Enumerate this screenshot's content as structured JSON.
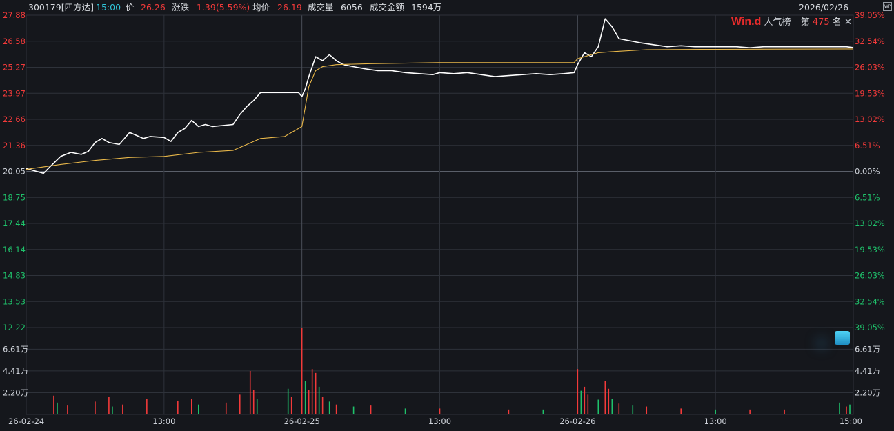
{
  "header": {
    "code_name": "300179[四方达]",
    "time": "15:00",
    "price_label": "价",
    "price": "26.26",
    "change_label": "涨跌",
    "change": "1.39(5.59%)",
    "avg_label": "均价",
    "avg": "26.19",
    "volume_label": "成交量",
    "volume": "6056",
    "amount_label": "成交金额",
    "amount": "1594万",
    "date": "2026/02/26",
    "badge": "WP"
  },
  "brand": {
    "logo": "Win.d",
    "list_name": "人气榜",
    "rank_prefix": "第",
    "rank": "475",
    "rank_suffix": "名",
    "close": "✕"
  },
  "colors": {
    "background": "#15171c",
    "grid": "#2e323a",
    "price_line": "#ffffff",
    "avg_line": "#e9b84a",
    "up": "#f23a3a",
    "down": "#1fc26b",
    "neutral_text": "#cfd3da"
  },
  "chart_data": {
    "type": "line",
    "base_price": 20.05,
    "price_axis": {
      "min": 12.22,
      "max": 27.88,
      "ticks": [
        "27.88",
        "26.58",
        "25.27",
        "23.97",
        "22.66",
        "21.36",
        "20.05",
        "18.75",
        "17.44",
        "16.14",
        "14.83",
        "13.53",
        "12.22"
      ],
      "pct_ticks": [
        "39.05%",
        "32.54%",
        "26.03%",
        "19.53%",
        "13.02%",
        "6.51%",
        "0.00%",
        "6.51%",
        "13.02%",
        "19.53%",
        "26.03%",
        "32.54%",
        "39.05%"
      ]
    },
    "volume_axis": {
      "unit": "万",
      "ticks": [
        "6.61万",
        "4.41万",
        "2.20万"
      ],
      "tick_values": [
        6.61,
        4.41,
        2.2
      ],
      "max": 8.8
    },
    "x_labels": [
      "26-02-24",
      "13:00",
      "26-02-25",
      "13:00",
      "26-02-26",
      "13:00",
      "15:00"
    ],
    "days": [
      "2026-02-24",
      "2026-02-25",
      "2026-02-26"
    ],
    "series": [
      {
        "name": "price",
        "points": [
          [
            0,
            20.2
          ],
          [
            2,
            20.1
          ],
          [
            5,
            19.95
          ],
          [
            7,
            20.3
          ],
          [
            10,
            20.8
          ],
          [
            13,
            21.0
          ],
          [
            16,
            20.9
          ],
          [
            18,
            21.05
          ],
          [
            20,
            21.5
          ],
          [
            22,
            21.7
          ],
          [
            24,
            21.5
          ],
          [
            27,
            21.4
          ],
          [
            30,
            22.0
          ],
          [
            32,
            21.85
          ],
          [
            34,
            21.7
          ],
          [
            36,
            21.8
          ],
          [
            40,
            21.75
          ],
          [
            42,
            21.55
          ],
          [
            44,
            22.0
          ],
          [
            46,
            22.2
          ],
          [
            48,
            22.6
          ],
          [
            50,
            22.3
          ],
          [
            52,
            22.4
          ],
          [
            54,
            22.3
          ],
          [
            57,
            22.35
          ],
          [
            60,
            22.4
          ],
          [
            62,
            22.9
          ],
          [
            64,
            23.3
          ],
          [
            66,
            23.6
          ],
          [
            68,
            24.0
          ],
          [
            72,
            24.0
          ],
          [
            76,
            24.0
          ],
          [
            79,
            24.0
          ],
          [
            80,
            23.8
          ],
          [
            81,
            24.2
          ],
          [
            82,
            24.8
          ],
          [
            84,
            25.8
          ],
          [
            86,
            25.6
          ],
          [
            88,
            25.9
          ],
          [
            90,
            25.6
          ],
          [
            92,
            25.4
          ],
          [
            95,
            25.3
          ],
          [
            98,
            25.2
          ],
          [
            102,
            25.1
          ],
          [
            106,
            25.1
          ],
          [
            110,
            25.0
          ],
          [
            114,
            24.95
          ],
          [
            118,
            24.9
          ],
          [
            120,
            25.0
          ],
          [
            124,
            24.95
          ],
          [
            128,
            25.0
          ],
          [
            132,
            24.9
          ],
          [
            136,
            24.8
          ],
          [
            140,
            24.85
          ],
          [
            144,
            24.9
          ],
          [
            148,
            24.95
          ],
          [
            152,
            24.9
          ],
          [
            156,
            24.95
          ],
          [
            159,
            25.0
          ],
          [
            160,
            25.4
          ],
          [
            162,
            26.0
          ],
          [
            164,
            25.8
          ],
          [
            166,
            26.3
          ],
          [
            168,
            27.7
          ],
          [
            170,
            27.3
          ],
          [
            172,
            26.7
          ],
          [
            175,
            26.6
          ],
          [
            178,
            26.5
          ],
          [
            182,
            26.4
          ],
          [
            186,
            26.3
          ],
          [
            190,
            26.35
          ],
          [
            194,
            26.3
          ],
          [
            198,
            26.3
          ],
          [
            202,
            26.3
          ],
          [
            206,
            26.3
          ],
          [
            210,
            26.25
          ],
          [
            214,
            26.3
          ],
          [
            218,
            26.3
          ],
          [
            222,
            26.3
          ],
          [
            226,
            26.3
          ],
          [
            230,
            26.3
          ],
          [
            234,
            26.3
          ],
          [
            238,
            26.3
          ],
          [
            240,
            26.26
          ]
        ]
      },
      {
        "name": "average",
        "points": [
          [
            0,
            20.15
          ],
          [
            10,
            20.4
          ],
          [
            20,
            20.6
          ],
          [
            30,
            20.75
          ],
          [
            40,
            20.8
          ],
          [
            50,
            21.0
          ],
          [
            60,
            21.1
          ],
          [
            68,
            21.7
          ],
          [
            75,
            21.8
          ],
          [
            80,
            22.3
          ],
          [
            82,
            24.3
          ],
          [
            84,
            25.1
          ],
          [
            86,
            25.3
          ],
          [
            90,
            25.4
          ],
          [
            100,
            25.45
          ],
          [
            120,
            25.5
          ],
          [
            140,
            25.5
          ],
          [
            159,
            25.5
          ],
          [
            160,
            25.7
          ],
          [
            162,
            25.8
          ],
          [
            166,
            26.0
          ],
          [
            170,
            26.05
          ],
          [
            180,
            26.15
          ],
          [
            200,
            26.17
          ],
          [
            220,
            26.18
          ],
          [
            240,
            26.19
          ]
        ]
      }
    ],
    "volume_bars": [
      {
        "x": 8,
        "v": 1.9,
        "c": "up"
      },
      {
        "x": 9,
        "v": 1.2,
        "c": "down"
      },
      {
        "x": 12,
        "v": 0.9,
        "c": "up"
      },
      {
        "x": 20,
        "v": 1.3,
        "c": "up"
      },
      {
        "x": 24,
        "v": 1.8,
        "c": "up"
      },
      {
        "x": 25,
        "v": 0.8,
        "c": "down"
      },
      {
        "x": 28,
        "v": 1.0,
        "c": "up"
      },
      {
        "x": 35,
        "v": 1.6,
        "c": "up"
      },
      {
        "x": 44,
        "v": 1.4,
        "c": "up"
      },
      {
        "x": 48,
        "v": 1.6,
        "c": "up"
      },
      {
        "x": 50,
        "v": 1.0,
        "c": "down"
      },
      {
        "x": 58,
        "v": 1.2,
        "c": "up"
      },
      {
        "x": 62,
        "v": 2.0,
        "c": "up"
      },
      {
        "x": 65,
        "v": 4.4,
        "c": "up"
      },
      {
        "x": 66,
        "v": 2.5,
        "c": "up"
      },
      {
        "x": 67,
        "v": 1.6,
        "c": "down"
      },
      {
        "x": 76,
        "v": 2.6,
        "c": "down"
      },
      {
        "x": 77,
        "v": 1.8,
        "c": "up"
      },
      {
        "x": 80,
        "v": 8.8,
        "c": "up"
      },
      {
        "x": 81,
        "v": 3.4,
        "c": "down"
      },
      {
        "x": 82,
        "v": 2.5,
        "c": "up"
      },
      {
        "x": 83,
        "v": 4.6,
        "c": "up"
      },
      {
        "x": 84,
        "v": 4.2,
        "c": "up"
      },
      {
        "x": 85,
        "v": 2.8,
        "c": "down"
      },
      {
        "x": 86,
        "v": 1.8,
        "c": "up"
      },
      {
        "x": 88,
        "v": 1.3,
        "c": "down"
      },
      {
        "x": 90,
        "v": 1.0,
        "c": "up"
      },
      {
        "x": 95,
        "v": 0.8,
        "c": "down"
      },
      {
        "x": 100,
        "v": 0.9,
        "c": "up"
      },
      {
        "x": 110,
        "v": 0.6,
        "c": "down"
      },
      {
        "x": 120,
        "v": 0.6,
        "c": "up"
      },
      {
        "x": 140,
        "v": 0.5,
        "c": "up"
      },
      {
        "x": 150,
        "v": 0.5,
        "c": "down"
      },
      {
        "x": 160,
        "v": 4.6,
        "c": "up"
      },
      {
        "x": 161,
        "v": 2.4,
        "c": "down"
      },
      {
        "x": 162,
        "v": 2.8,
        "c": "up"
      },
      {
        "x": 163,
        "v": 2.0,
        "c": "up"
      },
      {
        "x": 166,
        "v": 1.5,
        "c": "down"
      },
      {
        "x": 168,
        "v": 3.4,
        "c": "up"
      },
      {
        "x": 169,
        "v": 2.6,
        "c": "up"
      },
      {
        "x": 170,
        "v": 1.6,
        "c": "down"
      },
      {
        "x": 172,
        "v": 1.1,
        "c": "up"
      },
      {
        "x": 176,
        "v": 0.9,
        "c": "down"
      },
      {
        "x": 180,
        "v": 0.8,
        "c": "up"
      },
      {
        "x": 190,
        "v": 0.6,
        "c": "up"
      },
      {
        "x": 200,
        "v": 0.5,
        "c": "down"
      },
      {
        "x": 210,
        "v": 0.5,
        "c": "up"
      },
      {
        "x": 220,
        "v": 0.5,
        "c": "up"
      },
      {
        "x": 236,
        "v": 1.2,
        "c": "down"
      },
      {
        "x": 238,
        "v": 0.8,
        "c": "up"
      },
      {
        "x": 239,
        "v": 1.0,
        "c": "down"
      }
    ],
    "grid": true
  }
}
